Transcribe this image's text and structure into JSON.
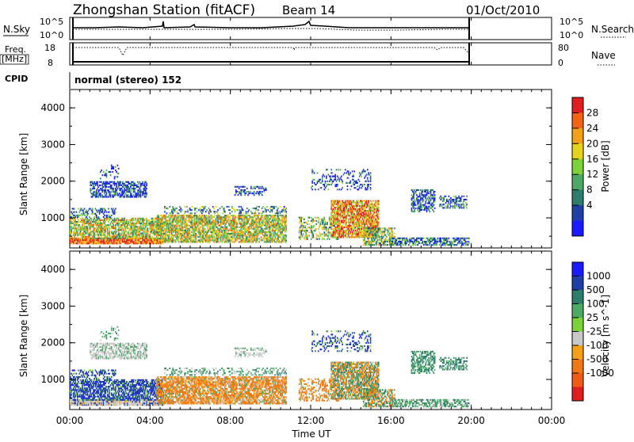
{
  "header": {
    "station": "Zhongshan Station (fitACF)",
    "beam": "Beam 14",
    "date": "01/Oct/2010"
  },
  "summary": {
    "nsky_label": "N.Sky",
    "nsearch_label": "N.Search",
    "freq_label": "Freq.",
    "freq_unit": "[MHz]",
    "nave_label": "Nave",
    "cpid_label": "CPID",
    "cpid_text": "normal (stereo) 152",
    "noise_ticks": [
      "10^5",
      "10^0"
    ],
    "noise_right_ticks": [
      "10^5",
      "10^0"
    ],
    "freq_ticks": [
      "18",
      "8"
    ],
    "nave_ticks": [
      "80",
      "0"
    ]
  },
  "x_axis": {
    "label": "Time UT",
    "ticks": [
      "00:00",
      "04:00",
      "08:00",
      "12:00",
      "16:00",
      "20:00",
      "00:00"
    ]
  },
  "colors": {
    "power": [
      "#1a1aff",
      "#1f3fa6",
      "#2c7d6c",
      "#4ca864",
      "#7cd23a",
      "#e6d21e",
      "#f5a01a",
      "#f06414",
      "#e01e1e"
    ],
    "velocity": [
      "#1a1aff",
      "#1f3fa6",
      "#2c7d6c",
      "#4ca864",
      "#7cd23a",
      "#c8c8c8",
      "#f5a01a",
      "#f07814",
      "#f05a14",
      "#e01e1e"
    ]
  },
  "chart_data": [
    {
      "type": "heatmap",
      "ylabel": "Slant Range [km]",
      "xlabel": "",
      "ylim": [
        180,
        4500
      ],
      "xlim_hours": [
        0,
        24
      ],
      "y_ticks": [
        1000,
        2000,
        3000,
        4000
      ],
      "colorbar_label": "Power [dB]",
      "colorbar_ticks": [
        "28",
        "24",
        "20",
        "16",
        "12",
        "8",
        "4"
      ],
      "data_end_hour": 20
    },
    {
      "type": "heatmap",
      "ylabel": "Slant Range [km]",
      "xlabel": "Time UT",
      "ylim": [
        180,
        4500
      ],
      "xlim_hours": [
        0,
        24
      ],
      "y_ticks": [
        1000,
        2000,
        3000,
        4000
      ],
      "colorbar_label": "Velocity [m s^-1]",
      "colorbar_ticks": [
        "1000",
        "500",
        "100",
        "25",
        "-25",
        "-100",
        "-500",
        "-1000"
      ],
      "data_end_hour": 20
    }
  ]
}
